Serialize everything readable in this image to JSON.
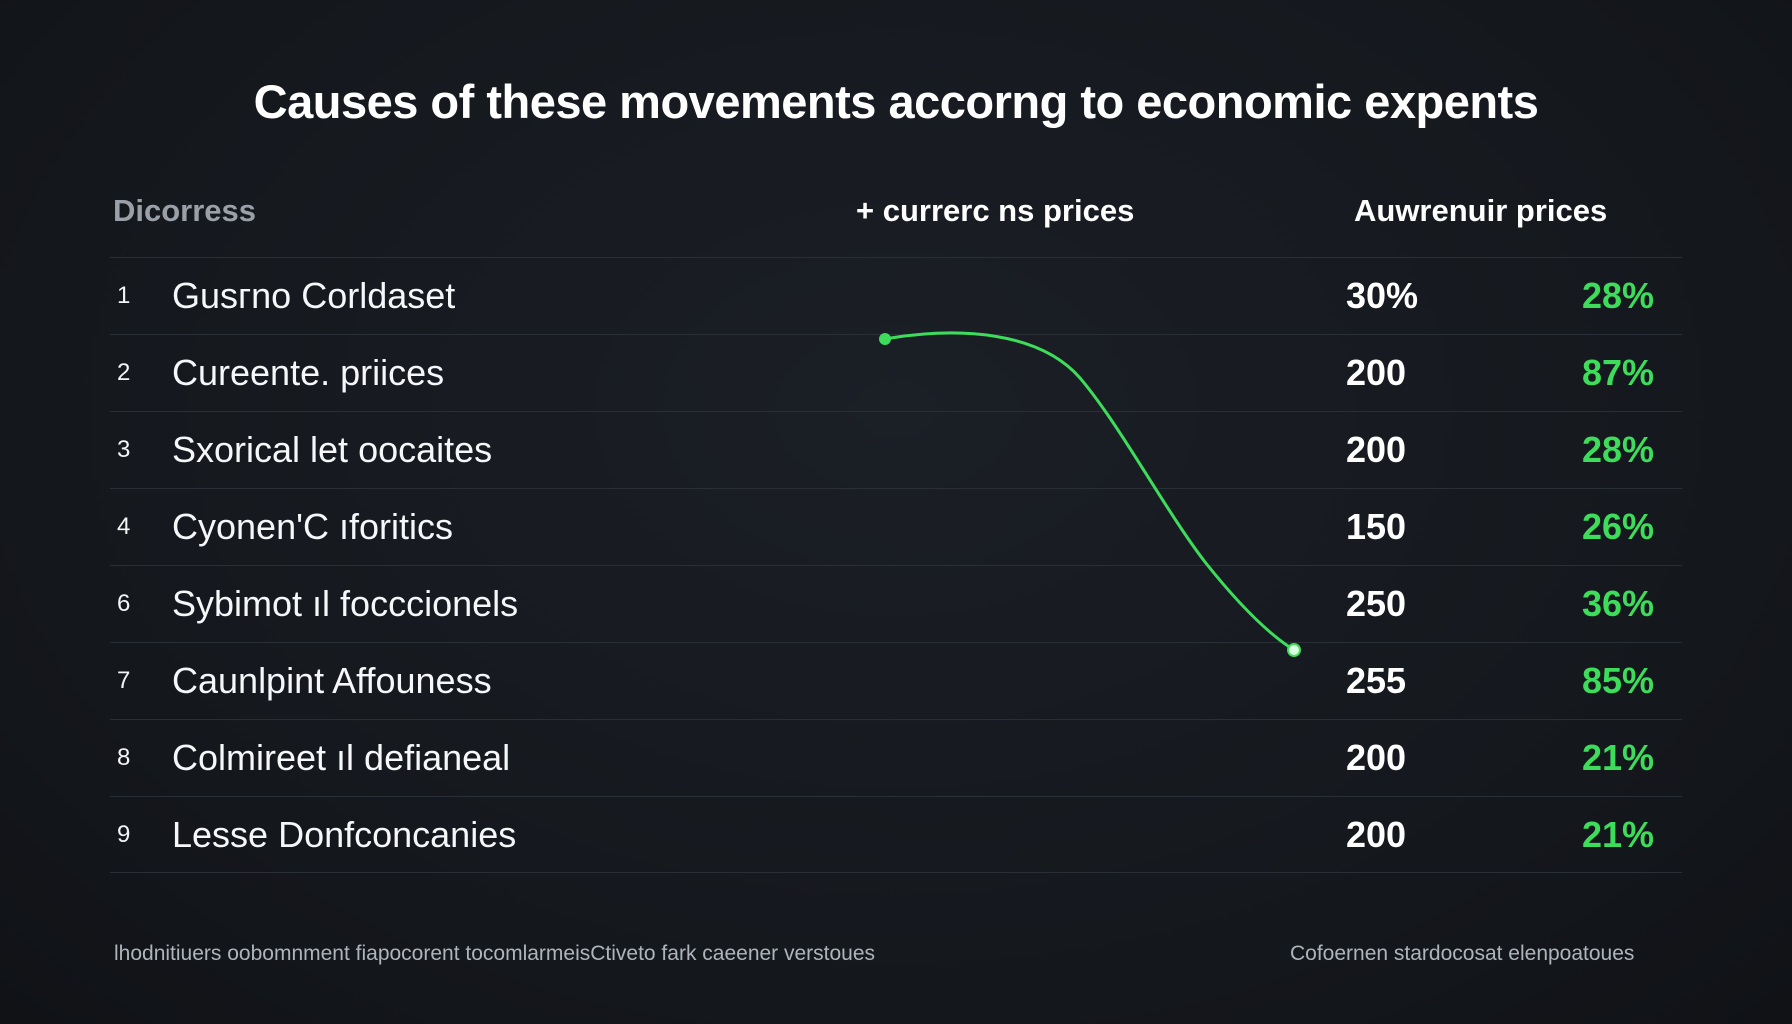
{
  "title": "Causes of these movements accorng to economic expents",
  "headers": {
    "description": "Dicorress",
    "current": "+ currerc ns prices",
    "average": "Auwrenuir prices"
  },
  "rows": [
    {
      "num": "1",
      "label": "Gusгno Corldaset",
      "value": "30%",
      "pct": "28%"
    },
    {
      "num": "2",
      "label": "Cureente. priices",
      "value": "200",
      "pct": "87%"
    },
    {
      "num": "3",
      "label": "Sxorical let oocaites",
      "value": "200",
      "pct": "28%"
    },
    {
      "num": "4",
      "label": "Cyonen'C ıforitics",
      "value": "150",
      "pct": "26%"
    },
    {
      "num": "6",
      "label": "Sybimot ıl focccionels",
      "value": "250",
      "pct": "36%"
    },
    {
      "num": "7",
      "label": "Caunlpint Affouness",
      "value": "255",
      "pct": "85%"
    },
    {
      "num": "8",
      "label": "Colmireet ıl defianeal",
      "value": "200",
      "pct": "21%"
    },
    {
      "num": "9",
      "label": "Lesse  Donfconcanies",
      "value": "200",
      "pct": "21%"
    }
  ],
  "footer": {
    "left": "lhodnitiuers oobomnment fiapocorent tocomlarmeisCtiveto fark caeener verstoues",
    "right": "Cofoernen stardocosat elenpoatoues"
  },
  "colors": {
    "background": "#15181e",
    "accent_green": "#3ddc5a",
    "text": "#ffffff",
    "muted": "#9aa0a9"
  }
}
